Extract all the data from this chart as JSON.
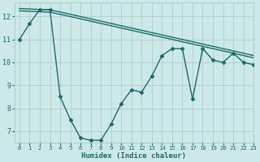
{
  "xlabel": "Humidex (Indice chaleur)",
  "ylabel": "",
  "bg_color": "#cde8e8",
  "grid_color": "#aecece",
  "line_color": "#1a6b6b",
  "x_data": [
    0,
    1,
    2,
    3,
    4,
    5,
    6,
    7,
    8,
    9,
    10,
    11,
    12,
    13,
    14,
    15,
    16,
    17,
    18,
    19,
    20,
    21,
    22,
    23
  ],
  "line1": [
    11.0,
    11.7,
    12.3,
    12.3,
    8.5,
    7.5,
    6.7,
    6.6,
    6.6,
    7.3,
    8.2,
    8.8,
    8.7,
    9.4,
    10.3,
    10.6,
    10.6,
    8.4,
    10.6,
    10.1,
    10.0,
    10.4,
    10.0,
    9.9
  ],
  "line2": [
    12.25,
    12.23,
    12.21,
    12.19,
    12.1,
    12.0,
    11.9,
    11.8,
    11.7,
    11.6,
    11.5,
    11.4,
    11.3,
    11.2,
    11.1,
    11.0,
    10.9,
    10.8,
    10.7,
    10.6,
    10.5,
    10.4,
    10.3,
    10.2
  ],
  "line3": [
    12.35,
    12.33,
    12.31,
    12.29,
    12.2,
    12.1,
    12.0,
    11.9,
    11.8,
    11.7,
    11.6,
    11.5,
    11.4,
    11.3,
    11.2,
    11.1,
    11.0,
    10.9,
    10.8,
    10.7,
    10.6,
    10.5,
    10.4,
    10.3
  ],
  "ylim": [
    6.5,
    12.6
  ],
  "xlim": [
    -0.5,
    23
  ],
  "yticks": [
    7,
    8,
    9,
    10,
    11,
    12
  ],
  "xticks": [
    0,
    1,
    2,
    3,
    4,
    5,
    6,
    7,
    8,
    9,
    10,
    11,
    12,
    13,
    14,
    15,
    16,
    17,
    18,
    19,
    20,
    21,
    22,
    23
  ],
  "marker": "D",
  "markersize": 2.5,
  "linewidth": 1.0
}
